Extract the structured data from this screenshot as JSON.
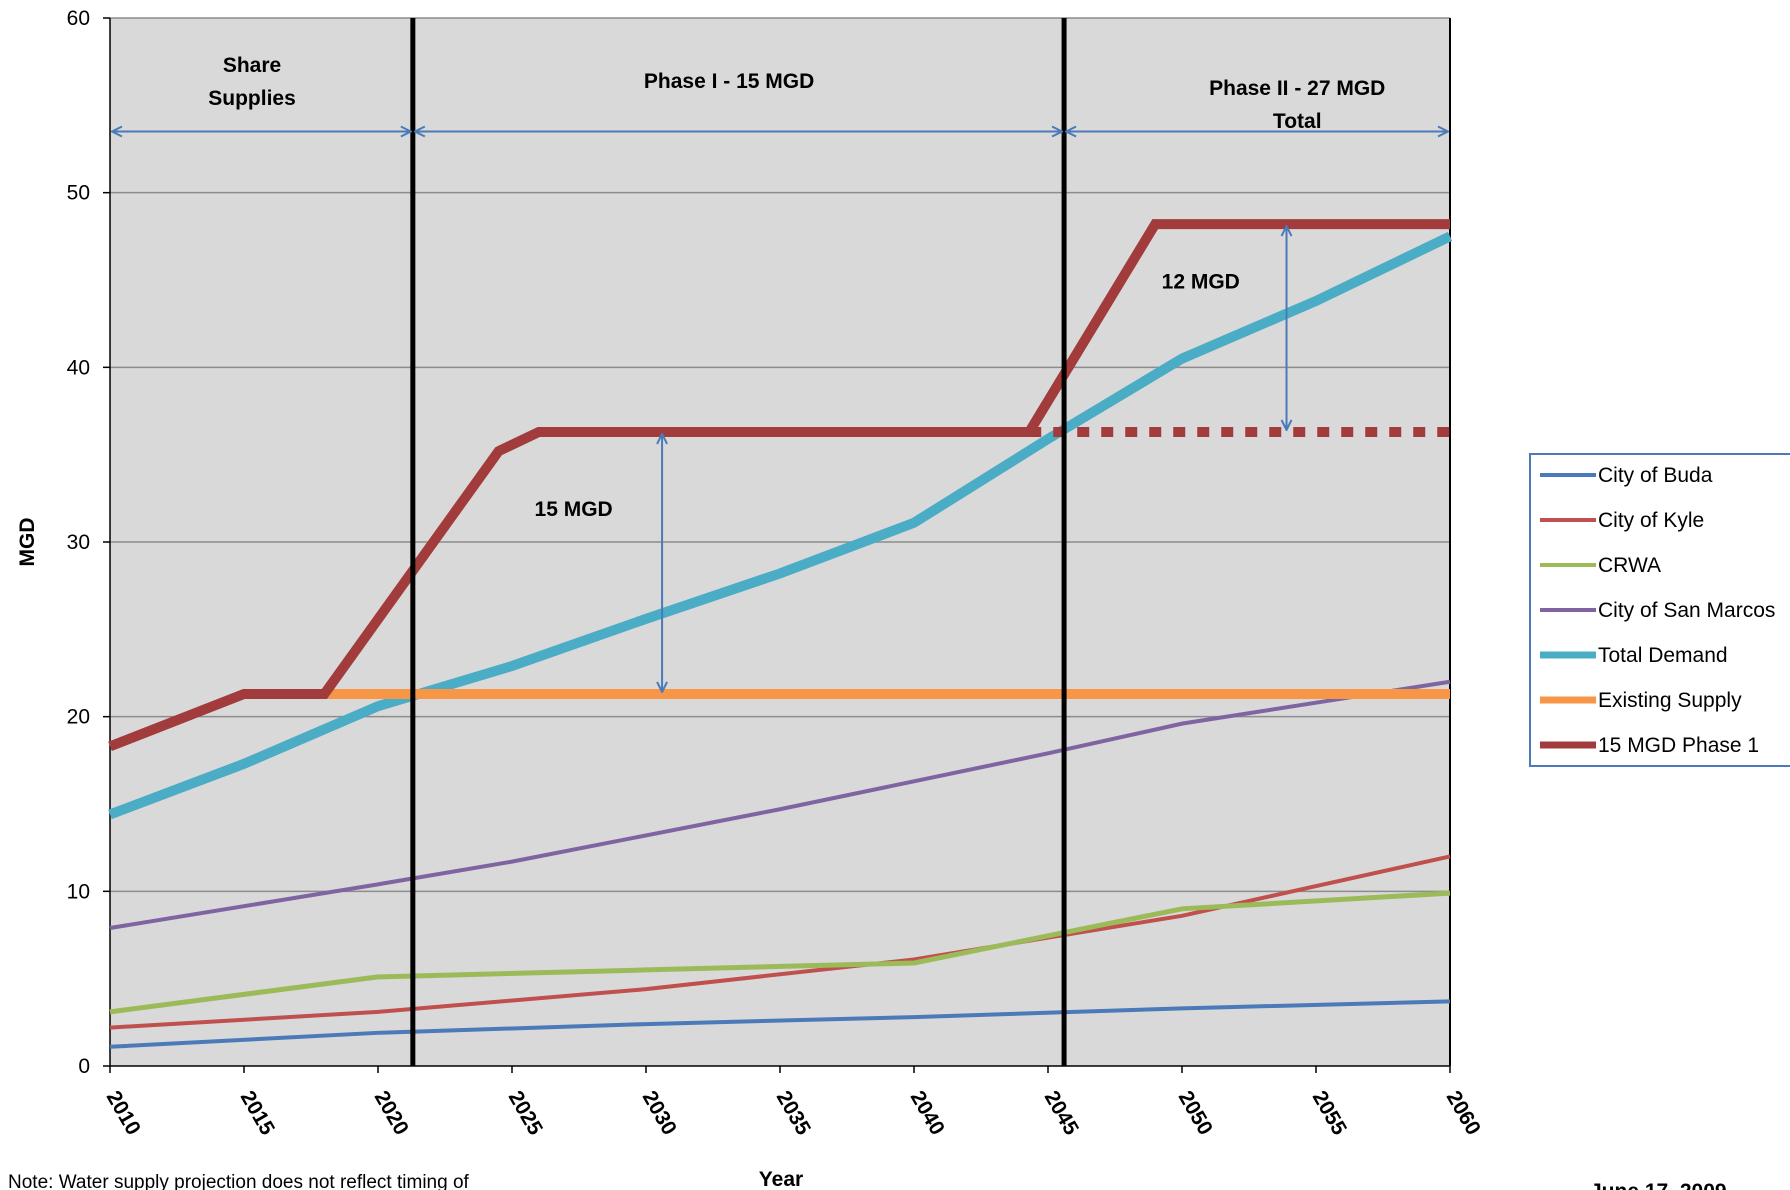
{
  "chart_data": {
    "type": "line",
    "xlabel": "Year",
    "ylabel": "MGD",
    "xlim": [
      2010,
      2060
    ],
    "ylim": [
      0,
      60
    ],
    "x_ticks": [
      2010,
      2015,
      2020,
      2025,
      2030,
      2035,
      2040,
      2045,
      2050,
      2055,
      2060
    ],
    "y_ticks": [
      0,
      10,
      20,
      30,
      40,
      50,
      60
    ],
    "grid": "horizontal",
    "legend_position": "right",
    "background": "#d9d9d9",
    "series": [
      {
        "name": "City of Buda",
        "color": "#4a7ab8",
        "width": 4,
        "points": [
          [
            2010,
            1.1
          ],
          [
            2020,
            1.9
          ],
          [
            2030,
            2.4
          ],
          [
            2040,
            2.8
          ],
          [
            2050,
            3.3
          ],
          [
            2060,
            3.7
          ]
        ]
      },
      {
        "name": "City of Kyle",
        "color": "#c0504d",
        "width": 4,
        "points": [
          [
            2010,
            2.2
          ],
          [
            2020,
            3.1
          ],
          [
            2030,
            4.4
          ],
          [
            2040,
            6.1
          ],
          [
            2050,
            8.6
          ],
          [
            2060,
            12.0
          ]
        ]
      },
      {
        "name": "CRWA",
        "color": "#9bbb59",
        "width": 5,
        "points": [
          [
            2010,
            3.1
          ],
          [
            2020,
            5.1
          ],
          [
            2030,
            5.5
          ],
          [
            2040,
            5.9
          ],
          [
            2050,
            9.0
          ],
          [
            2060,
            9.9
          ]
        ]
      },
      {
        "name": "City of San Marcos",
        "color": "#8064a2",
        "width": 4,
        "points": [
          [
            2010,
            7.9
          ],
          [
            2020,
            10.4
          ],
          [
            2025,
            11.7
          ],
          [
            2030,
            13.2
          ],
          [
            2035,
            14.7
          ],
          [
            2040,
            16.3
          ],
          [
            2045,
            17.9
          ],
          [
            2050,
            19.6
          ],
          [
            2055,
            20.8
          ],
          [
            2060,
            22.0
          ]
        ]
      },
      {
        "name": "Total Demand",
        "color": "#4bacc6",
        "width": 10,
        "points": [
          [
            2010,
            14.4
          ],
          [
            2015,
            17.3
          ],
          [
            2020,
            20.6
          ],
          [
            2025,
            22.9
          ],
          [
            2030,
            25.6
          ],
          [
            2035,
            28.2
          ],
          [
            2040,
            31.1
          ],
          [
            2045,
            35.9
          ],
          [
            2050,
            40.5
          ],
          [
            2055,
            43.8
          ],
          [
            2060,
            47.5
          ]
        ]
      },
      {
        "name": "Existing Supply",
        "color": "#f79646",
        "width": 10,
        "points": [
          [
            2018,
            21.3
          ],
          [
            2060,
            21.3
          ]
        ]
      },
      {
        "name": "15 MGD Phase 1",
        "color": "#a23b3b",
        "width": 10,
        "points": [
          [
            2010,
            18.3
          ],
          [
            2015,
            21.3
          ],
          [
            2018,
            21.3
          ],
          [
            2024.5,
            35.2
          ],
          [
            2026,
            36.3
          ],
          [
            2044.3,
            36.3
          ],
          [
            2049,
            48.2
          ],
          [
            2060,
            48.2
          ]
        ]
      }
    ],
    "dotted_extension": {
      "color": "#a23b3b",
      "points": [
        [
          2044.3,
          36.3
        ],
        [
          2060,
          36.3
        ]
      ]
    },
    "phase_dividers": [
      2021.3,
      2045.6
    ],
    "phase_labels": [
      {
        "lines": [
          "Share",
          "Supplies"
        ],
        "x": 2015.3,
        "y": 56.9
      },
      {
        "lines": [
          "Phase I - 15 MGD"
        ],
        "x": 2033.1,
        "y": 56.0
      },
      {
        "lines": [
          "Phase II - 27 MGD",
          "Total"
        ],
        "x": 2054.3,
        "y": 55.6
      }
    ],
    "phase_ranges": [
      [
        2010,
        2021.3
      ],
      [
        2021.3,
        2045.6
      ],
      [
        2045.6,
        2060
      ]
    ],
    "phase_arrow_y": 53.5,
    "gap_arrows": [
      {
        "x": 2030.6,
        "y1": 21.3,
        "y2": 36.3,
        "label": "15 MGD",
        "label_x": 2027.3,
        "label_y": 31.5
      },
      {
        "x": 2053.9,
        "y1": 36.3,
        "y2": 48.2,
        "label": "12 MGD",
        "label_x": 2050.7,
        "label_y": 44.5
      }
    ]
  },
  "note": "Note: Water supply projection does not reflect timing of",
  "date": "June 17, 2009"
}
